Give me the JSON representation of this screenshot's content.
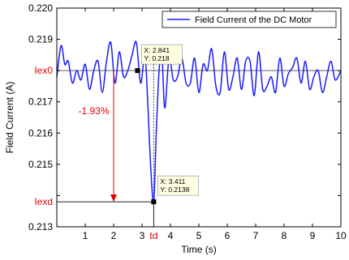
{
  "chart_data": {
    "type": "line",
    "xlabel": "Time (s)",
    "ylabel": "Field Current (A)",
    "xlim": [
      0,
      10
    ],
    "ylim": [
      0.213,
      0.22
    ],
    "x_ticks": [
      1,
      2,
      3,
      4,
      5,
      6,
      7,
      8,
      9,
      10
    ],
    "x_tick_labels": [
      "1",
      "2",
      "3",
      "4",
      "5",
      "6",
      "7",
      "8",
      "9",
      "10"
    ],
    "x_tick_special": [
      {
        "x": 3.411,
        "label": "td",
        "color": "#e00000"
      }
    ],
    "y_ticks": [
      0.213,
      0.214,
      0.215,
      0.216,
      0.217,
      0.218,
      0.219,
      0.22
    ],
    "y_tick_labels": [
      "0.213",
      "",
      "0.215",
      "0.216",
      "0.217",
      "",
      "0.219",
      "0.220"
    ],
    "y_tick_special": [
      {
        "y": 0.218,
        "label": "Iex0",
        "color": "#e00000"
      },
      {
        "y": 0.2138,
        "label": "Iexd",
        "color": "#e00000"
      }
    ],
    "grid": false,
    "legend": {
      "placement": "top-right",
      "entries": [
        "Field Current of the DC Motor"
      ]
    },
    "series": [
      {
        "name": "Field Current of the DC Motor",
        "color": "#1a1aff",
        "x": [
          0.0,
          0.15,
          0.28,
          0.4,
          0.55,
          0.7,
          0.85,
          1.0,
          1.15,
          1.3,
          1.45,
          1.6,
          1.75,
          1.9,
          2.05,
          2.2,
          2.35,
          2.5,
          2.65,
          2.8,
          2.95,
          3.1,
          3.2,
          3.3,
          3.41,
          3.5,
          3.6,
          3.7,
          3.8,
          3.95,
          4.1,
          4.25,
          4.4,
          4.55,
          4.7,
          4.85,
          5.0,
          5.15,
          5.3,
          5.45,
          5.6,
          5.75,
          5.9,
          6.05,
          6.2,
          6.35,
          6.5,
          6.65,
          6.8,
          6.95,
          7.1,
          7.25,
          7.4,
          7.55,
          7.7,
          7.85,
          8.0,
          8.15,
          8.3,
          8.45,
          8.6,
          8.75,
          8.9,
          9.05,
          9.2,
          9.35,
          9.5,
          9.65,
          9.8,
          10.0
        ],
        "y": [
          0.2178,
          0.2188,
          0.2182,
          0.2183,
          0.2176,
          0.218,
          0.2177,
          0.2182,
          0.2174,
          0.218,
          0.2183,
          0.2173,
          0.2183,
          0.2189,
          0.2176,
          0.2186,
          0.2178,
          0.218,
          0.2185,
          0.2189,
          0.2176,
          0.2185,
          0.217,
          0.215,
          0.2138,
          0.216,
          0.218,
          0.2185,
          0.2168,
          0.2184,
          0.2177,
          0.2178,
          0.2184,
          0.2176,
          0.2176,
          0.2184,
          0.2173,
          0.2182,
          0.218,
          0.2187,
          0.2175,
          0.2173,
          0.2186,
          0.2174,
          0.2178,
          0.2184,
          0.2174,
          0.2183,
          0.2183,
          0.2172,
          0.2186,
          0.2174,
          0.2175,
          0.2178,
          0.2173,
          0.2184,
          0.2175,
          0.2179,
          0.2181,
          0.2184,
          0.2176,
          0.2183,
          0.2174,
          0.2178,
          0.218,
          0.2173,
          0.2178,
          0.2183,
          0.2177,
          0.218
        ]
      }
    ],
    "reference_lines": [
      {
        "type": "h",
        "y": 0.218,
        "x_range": [
          0,
          10
        ],
        "color": "#808080"
      },
      {
        "type": "h",
        "y": 0.2138,
        "x_range": [
          0,
          3.411
        ],
        "color": "#000000"
      },
      {
        "type": "v",
        "x": 3.411,
        "y_range": [
          0.213,
          0.2138
        ],
        "color": "#000000"
      },
      {
        "type": "v",
        "x": 3.411,
        "y_range": [
          0.2138,
          0.2187
        ],
        "color": "#000000",
        "dotted": true
      }
    ],
    "data_tips": [
      {
        "x": 2.841,
        "y": 0.218,
        "text_x": "X: 2.841",
        "text_y": "Y: 0.218"
      },
      {
        "x": 3.411,
        "y": 0.2138,
        "text_x": "X: 3.411",
        "text_y": "Y: 0.2138"
      }
    ],
    "annotations": [
      {
        "text": "-1.93%",
        "color": "#e00000",
        "x": 1.3,
        "y": 0.2166
      },
      {
        "type": "arrow",
        "x": 2.0,
        "y_from": 0.218,
        "y_to": 0.2138,
        "color": "#e00000"
      }
    ]
  }
}
